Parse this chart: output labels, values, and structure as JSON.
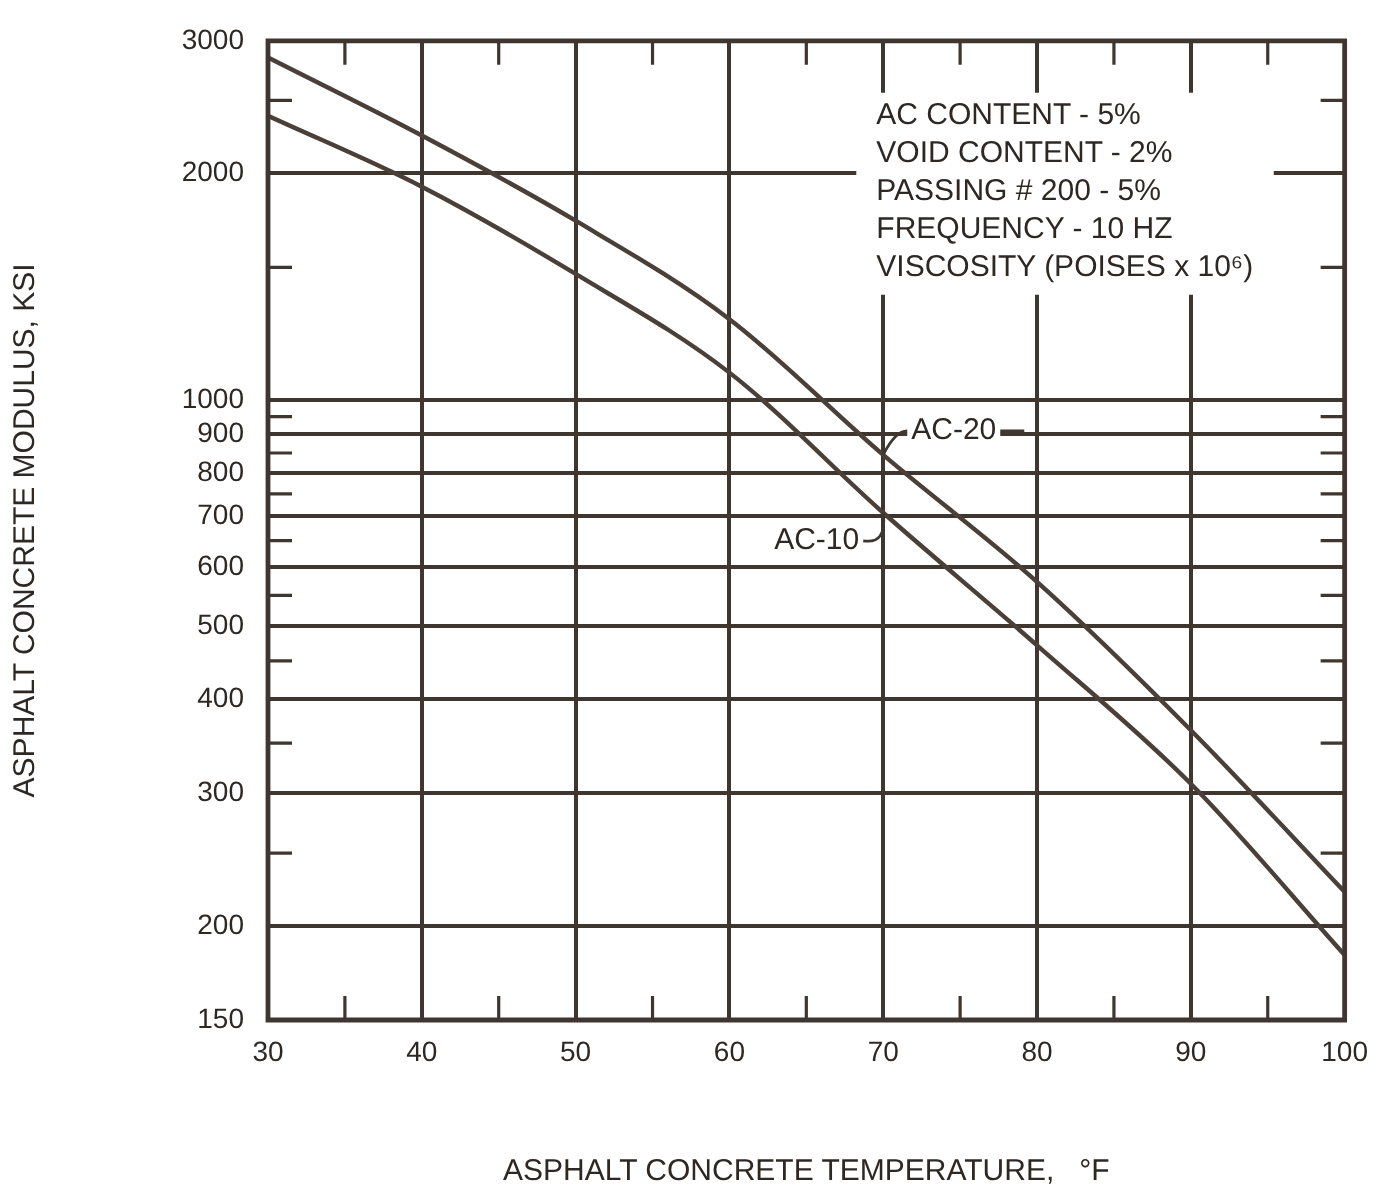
{
  "chart_data": {
    "type": "line",
    "xlabel": "ASPHALT CONCRETE TEMPERATURE,   °F",
    "ylabel": "ASPHALT CONCRETE MODULUS, KSI",
    "series": [
      {
        "name": "AC-20",
        "color": "#4a4038",
        "x": [
          30,
          40,
          50,
          60,
          70,
          80,
          90,
          100
        ],
        "values": [
          2850,
          2245,
          1730,
          1280,
          845,
          573,
          364,
          222
        ]
      },
      {
        "name": "AC-10",
        "color": "#4a4038",
        "x": [
          30,
          40,
          50,
          60,
          70,
          80,
          90,
          100
        ],
        "values": [
          2385,
          1920,
          1470,
          1087,
          708,
          472,
          309,
          183
        ]
      }
    ],
    "log": "y",
    "xlim": [
      30,
      100
    ],
    "ylim": [
      150,
      3000
    ],
    "xticks": [
      30,
      {
        "value": 35,
        "label": null
      },
      40,
      {
        "value": 45,
        "label": null
      },
      50,
      {
        "value": 55,
        "label": null
      },
      60,
      {
        "value": 65,
        "label": null
      },
      70,
      {
        "value": 75,
        "label": null
      },
      80,
      {
        "value": 85,
        "label": null
      },
      90,
      {
        "value": 95,
        "label": null
      },
      100
    ],
    "yticks": [
      150,
      200,
      {
        "value": 250,
        "label": null
      },
      300,
      {
        "value": 350,
        "label": null
      },
      400,
      {
        "value": 450,
        "label": null
      },
      500,
      {
        "value": 550,
        "label": null
      },
      600,
      {
        "value": 650,
        "label": null
      },
      700,
      {
        "value": 750,
        "label": null
      },
      800,
      {
        "value": 850,
        "label": null
      },
      900,
      {
        "value": 950,
        "label": null
      },
      1000,
      {
        "value": 1500,
        "label": null
      },
      2000,
      {
        "value": 2500,
        "label": null
      },
      3000
    ],
    "grid": true,
    "legend": "center",
    "marker": "none",
    "line_style": "solid",
    "annotations": [
      "AC CONTENT - 5%",
      "VOID CONTENT - 2%",
      "PASSING # 200 - 5%",
      "FREQUENCY - 10 HZ",
      "VISCOSITY (POISES x 10⁶)"
    ]
  }
}
